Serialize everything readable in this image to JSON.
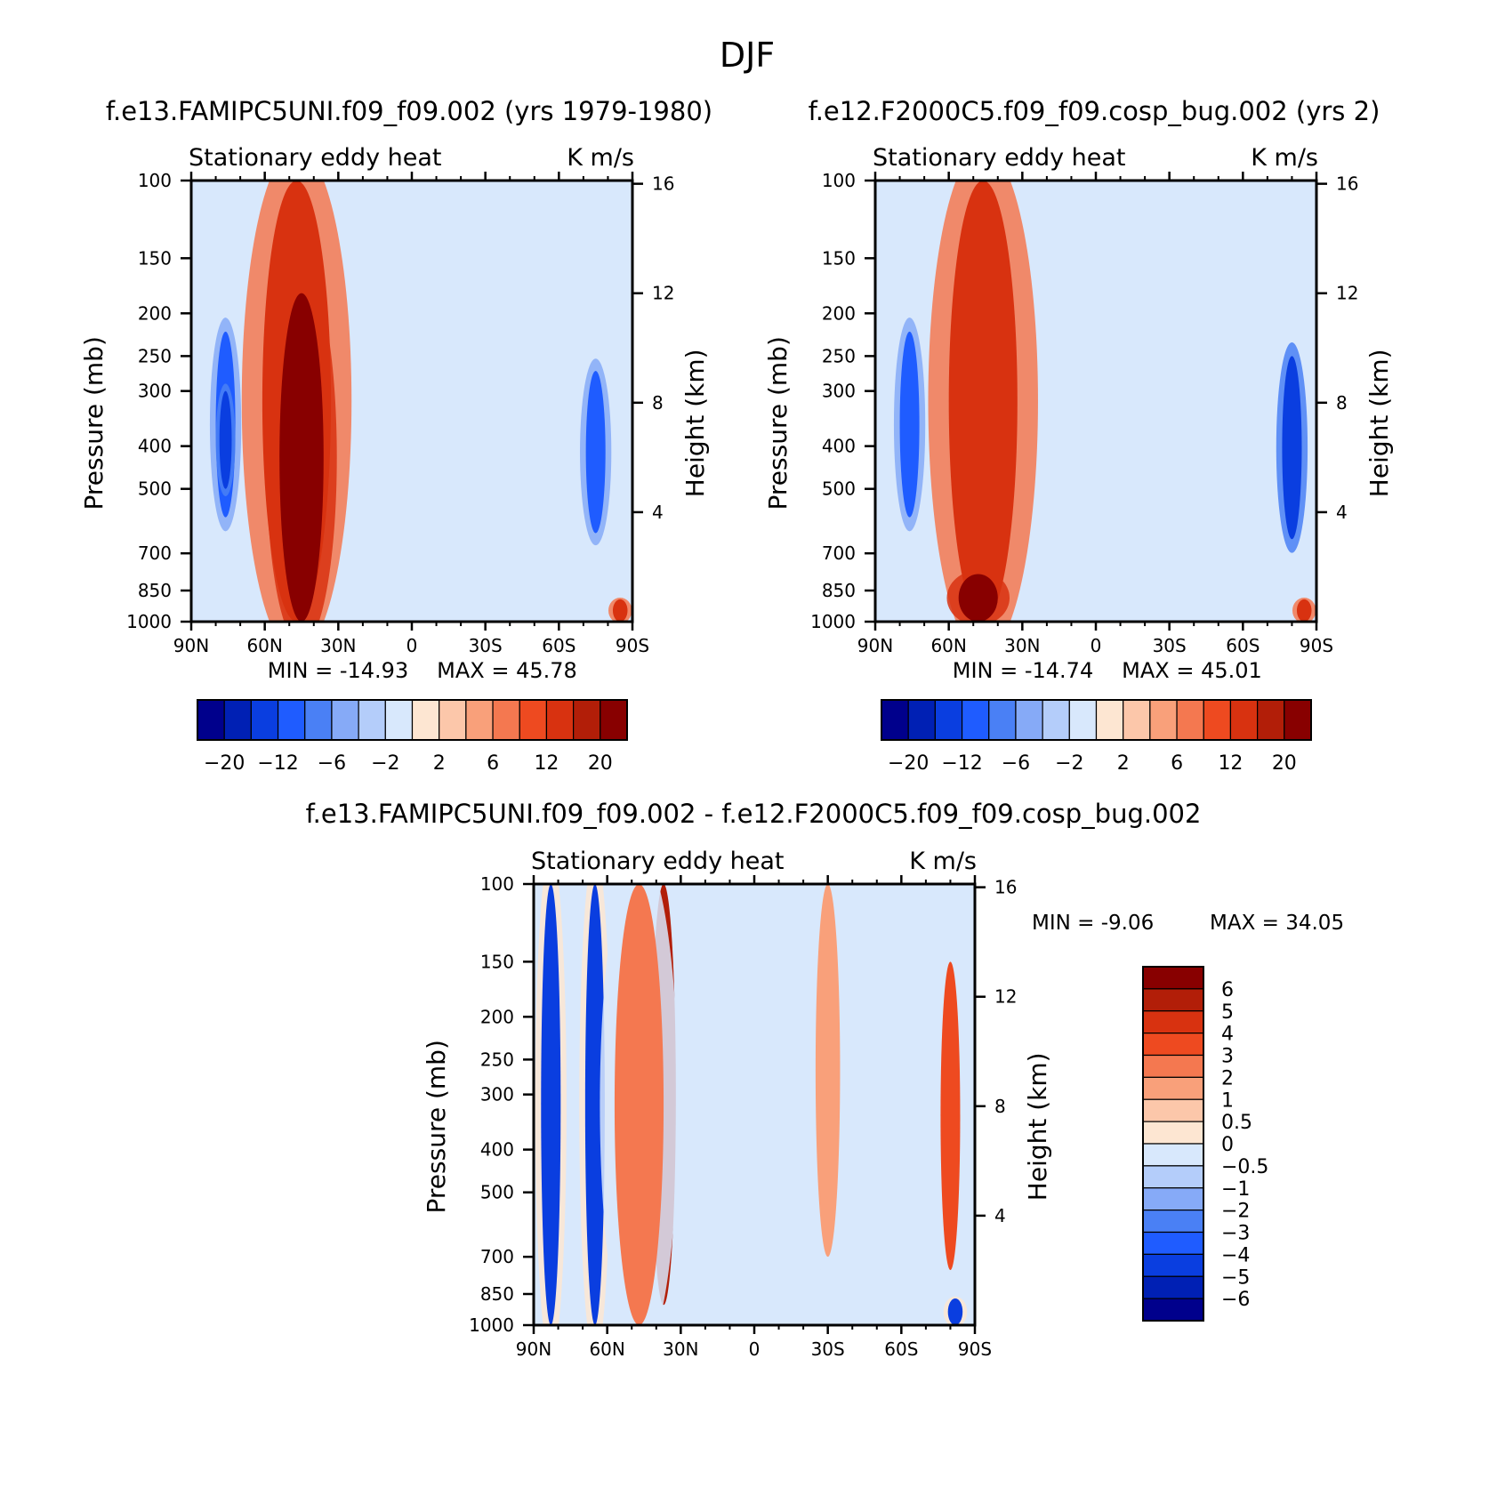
{
  "figure_title": "DJF",
  "chart_data": [
    {
      "type": "heatmap",
      "id": "top_left",
      "case_title": "f.e13.FAMIPC5UNI.f09_f09.002 (yrs 1979-1980)",
      "left_label": "Stationary eddy heat",
      "right_label": "K m/s",
      "ylabel": "Pressure (mb)",
      "ylabel_right": "Height (km)",
      "x_ticks": [
        "90N",
        "60N",
        "30N",
        "0",
        "30S",
        "60S",
        "90S"
      ],
      "y_ticks": [
        "100",
        "150",
        "200",
        "250",
        "300",
        "400",
        "500",
        "700",
        "850",
        "1000"
      ],
      "y_right_ticks": [
        "16",
        "12",
        "8",
        "4"
      ],
      "min_label": "MIN =  -14.93",
      "max_label": "MAX =   45.78",
      "colorbar_labels": [
        "-20",
        "-12",
        "-6",
        "-2",
        "2",
        "6",
        "12",
        "20"
      ],
      "colors": [
        "#00008c",
        "#0020b4",
        "#0a3ee0",
        "#1f5cff",
        "#4a80f5",
        "#86aaf7",
        "#b4cdfa",
        "#d8e8fc",
        "#fde6d2",
        "#fcc7aa",
        "#f9a07a",
        "#f47850",
        "#ee4a20",
        "#d83210",
        "#b21e08",
        "#880000"
      ],
      "features": [
        {
          "lat": 76,
          "p": 400,
          "w": 4,
          "h": 180,
          "level": -6
        },
        {
          "lat": 76,
          "p": 400,
          "w": 2.5,
          "h": 100,
          "level": -12
        },
        {
          "lat": 47,
          "p": 400,
          "w": 14,
          "h": 700,
          "level": 12
        },
        {
          "lat": 45,
          "p": 600,
          "w": 9,
          "h": 420,
          "level": 20
        },
        {
          "lat": -75,
          "p": 450,
          "w": 4,
          "h": 180,
          "level": -6
        },
        {
          "lat": -85,
          "p": 950,
          "w": 3,
          "h": 60,
          "level": 12
        }
      ]
    },
    {
      "type": "heatmap",
      "id": "top_right",
      "case_title": "f.e12.F2000C5.f09_f09.cosp_bug.002 (yrs 2)",
      "left_label": "Stationary eddy heat",
      "right_label": "K m/s",
      "ylabel": "Pressure (mb)",
      "ylabel_right": "Height (km)",
      "x_ticks": [
        "90N",
        "60N",
        "30N",
        "0",
        "30S",
        "60S",
        "90S"
      ],
      "y_ticks": [
        "100",
        "150",
        "200",
        "250",
        "300",
        "400",
        "500",
        "700",
        "850",
        "1000"
      ],
      "y_right_ticks": [
        "16",
        "12",
        "8",
        "4"
      ],
      "min_label": "MIN =  -14.74",
      "max_label": "MAX =   45.01",
      "colorbar_labels": [
        "-20",
        "-12",
        "-6",
        "-2",
        "2",
        "6",
        "12",
        "20"
      ],
      "colors": [
        "#00008c",
        "#0020b4",
        "#0a3ee0",
        "#1f5cff",
        "#4a80f5",
        "#86aaf7",
        "#b4cdfa",
        "#d8e8fc",
        "#fde6d2",
        "#fcc7aa",
        "#f9a07a",
        "#f47850",
        "#ee4a20",
        "#d83210",
        "#b21e08",
        "#880000"
      ],
      "features": [
        {
          "lat": 76,
          "p": 400,
          "w": 4,
          "h": 180,
          "level": -6
        },
        {
          "lat": 46,
          "p": 400,
          "w": 14,
          "h": 700,
          "level": 12
        },
        {
          "lat": 48,
          "p": 900,
          "w": 8,
          "h": 120,
          "level": 20
        },
        {
          "lat": -80,
          "p": 450,
          "w": 4,
          "h": 200,
          "level": -12
        },
        {
          "lat": -85,
          "p": 950,
          "w": 3,
          "h": 60,
          "level": 12
        }
      ]
    },
    {
      "type": "heatmap",
      "id": "bottom_diff",
      "case_title": "f.e13.FAMIPC5UNI.f09_f09.002 - f.e12.F2000C5.f09_f09.cosp_bug.002",
      "left_label": "Stationary eddy heat",
      "right_label": "K m/s",
      "ylabel": "Pressure (mb)",
      "ylabel_right": "Height (km)",
      "x_ticks": [
        "90N",
        "60N",
        "30N",
        "0",
        "30S",
        "60S",
        "90S"
      ],
      "y_ticks": [
        "100",
        "150",
        "200",
        "250",
        "300",
        "400",
        "500",
        "700",
        "850",
        "1000"
      ],
      "y_right_ticks": [
        "16",
        "12",
        "8",
        "4"
      ],
      "min_label": "MIN =   -9.06",
      "max_label": "MAX =   34.05",
      "colorbar_labels": [
        "6",
        "5",
        "4",
        "3",
        "2",
        "1",
        "0.5",
        "0",
        "-0.5",
        "-1",
        "-2",
        "-3",
        "-4",
        "-5",
        "-6"
      ],
      "colors": [
        "#880000",
        "#b21e08",
        "#d83210",
        "#ee4a20",
        "#f47850",
        "#f9a07a",
        "#fcc7aa",
        "#fde6d2",
        "#d8e8fc",
        "#b4cdfa",
        "#86aaf7",
        "#4a80f5",
        "#1f5cff",
        "#0a3ee0",
        "#0020b4",
        "#00008c"
      ],
      "features": [
        {
          "lat": 83,
          "p": 400,
          "w": 4,
          "h": 600,
          "level": -4
        },
        {
          "lat": 65,
          "p": 600,
          "w": 4,
          "h": 500,
          "level": -4
        },
        {
          "lat": 37,
          "p": 500,
          "w": 5,
          "h": 400,
          "level": 5
        },
        {
          "lat": 47,
          "p": 500,
          "w": 10,
          "h": 700,
          "level": 2
        },
        {
          "lat": -30,
          "p": 400,
          "w": 5,
          "h": 300,
          "level": 1
        },
        {
          "lat": -80,
          "p": 450,
          "w": 4,
          "h": 300,
          "level": 3
        },
        {
          "lat": -82,
          "p": 950,
          "w": 3,
          "h": 80,
          "level": -4
        }
      ]
    }
  ]
}
